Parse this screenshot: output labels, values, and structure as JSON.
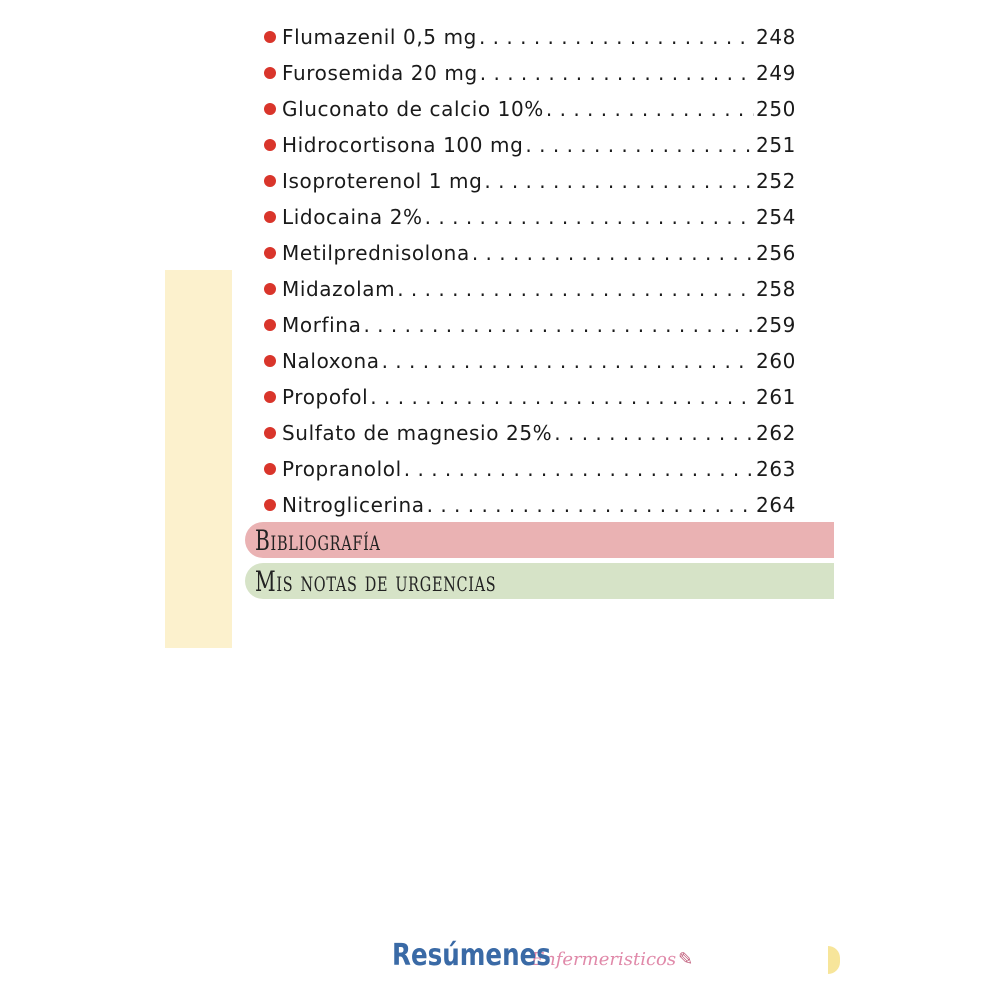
{
  "toc": {
    "items": [
      {
        "name": "Flumazenil 0,5 mg",
        "page": "248"
      },
      {
        "name": "Furosemida 20 mg",
        "page": "249"
      },
      {
        "name": "Gluconato de calcio 10%",
        "page": "250"
      },
      {
        "name": "Hidrocortisona 100 mg",
        "page": "251"
      },
      {
        "name": "Isoproterenol 1 mg",
        "page": "252"
      },
      {
        "name": "Lidocaina 2%",
        "page": "254"
      },
      {
        "name": "Metilprednisolona",
        "page": "256"
      },
      {
        "name": "Midazolam",
        "page": "258"
      },
      {
        "name": "Morfina",
        "page": "259"
      },
      {
        "name": "Naloxona",
        "page": "260"
      },
      {
        "name": "Propofol",
        "page": "261"
      },
      {
        "name": "Sulfato de magnesio 25%",
        "page": "262"
      },
      {
        "name": "Propranolol",
        "page": "263"
      },
      {
        "name": "Nitroglicerina",
        "page": "264"
      }
    ],
    "bullet_color": "#d9352b"
  },
  "sections": [
    {
      "title": "Bibliografía",
      "color": "#eab2b3"
    },
    {
      "title": "Mis notas de urgencias",
      "color": "#d6e3c7"
    }
  ],
  "footer": {
    "brand_main": "Resúmenes",
    "brand_script": "Enfermeristicos",
    "pen_icon": "syringe-pen-icon"
  }
}
